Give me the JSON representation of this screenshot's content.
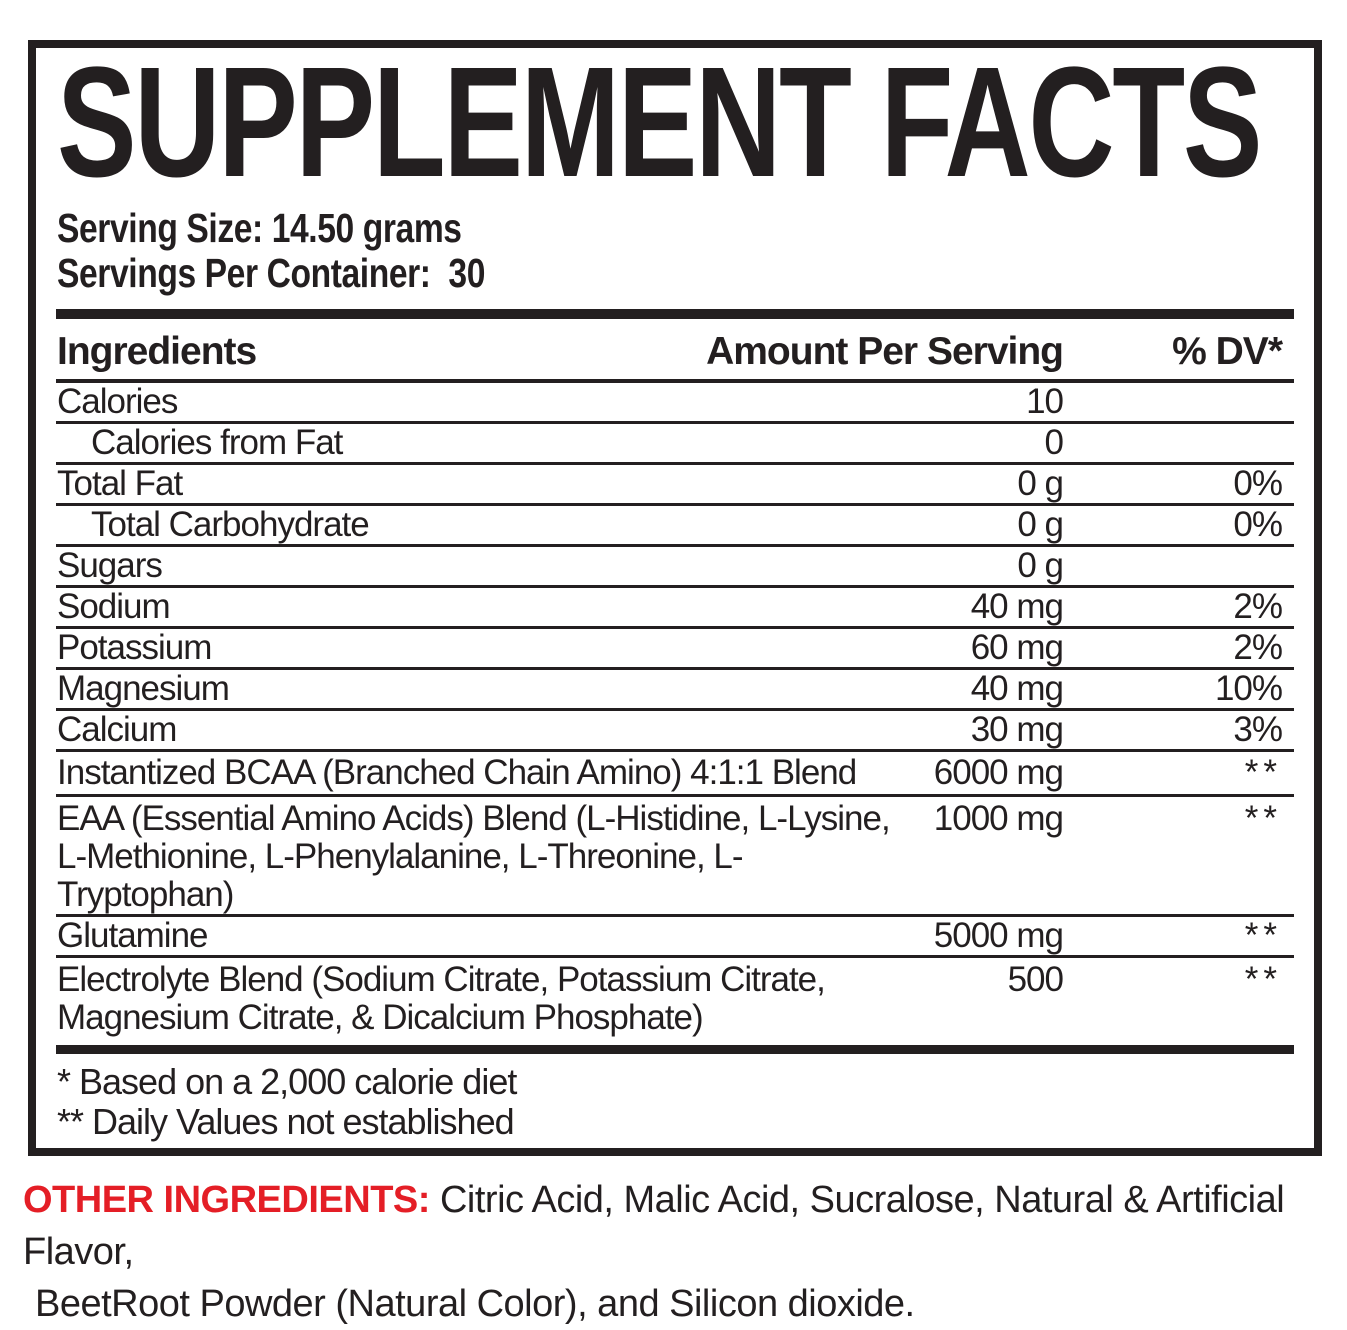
{
  "label": {
    "title": "SUPPLEMENT FACTS",
    "serving": {
      "size": "Serving Size: 14.50 grams",
      "per_container": "Servings Per Container:  30"
    },
    "table": {
      "headers": {
        "ingredients": "Ingredients",
        "amount": "Amount Per Serving",
        "dv": "% DV*"
      },
      "rows": [
        {
          "name_lines": [
            "Calories"
          ],
          "amount": "10",
          "dv": ""
        },
        {
          "name_lines": [
            "Calories from Fat"
          ],
          "amount": "0",
          "dv": ""
        },
        {
          "name_lines": [
            "Total Fat"
          ],
          "amount": "0 g",
          "dv": "0%"
        },
        {
          "name_lines": [
            "Total Carbohydrate"
          ],
          "amount": "0 g",
          "dv": "0%"
        },
        {
          "name_lines": [
            "Sugars"
          ],
          "amount": "0 g",
          "dv": ""
        },
        {
          "name_lines": [
            "Sodium"
          ],
          "amount": "40 mg",
          "dv": "2%"
        },
        {
          "name_lines": [
            "Potassium"
          ],
          "amount": "60 mg",
          "dv": "2%"
        },
        {
          "name_lines": [
            "Magnesium"
          ],
          "amount": "40 mg",
          "dv": "10%"
        },
        {
          "name_lines": [
            "Calcium"
          ],
          "amount": "30 mg",
          "dv": "3%"
        },
        {
          "name_lines": [
            "Instantized BCAA (Branched Chain Amino) 4:1:1 Blend"
          ],
          "amount": "6000 mg",
          "dv": "**"
        },
        {
          "name_lines": [
            "EAA (Essential Amino Acids) Blend (L-Histidine, L-Lysine,",
            "L-Methionine, L-Phenylalanine, L-Threonine, L-Tryptophan)"
          ],
          "amount": "1000 mg",
          "dv": "**"
        },
        {
          "name_lines": [
            "Glutamine"
          ],
          "amount": "5000 mg",
          "dv": "**"
        },
        {
          "name_lines": [
            "Electrolyte Blend (Sodium Citrate, Potassium Citrate,",
            "Magnesium Citrate, & Dicalcium Phosphate)"
          ],
          "amount": "500",
          "dv": "**"
        }
      ]
    },
    "footnotes": [
      "* Based on a 2,000 calorie diet",
      "** Daily Values not established"
    ]
  },
  "other_ingredients": {
    "label": "OTHER INGREDIENTS:",
    "text_line1": "Citric Acid, Malic Acid, Sucralose, Natural & Artificial Flavor,",
    "text_line2": "BeetRoot Powder (Natural Color), and Silicon dioxide."
  },
  "colors": {
    "ink": "#231f20",
    "accent_red": "#e41e26",
    "background": "#ffffff"
  }
}
